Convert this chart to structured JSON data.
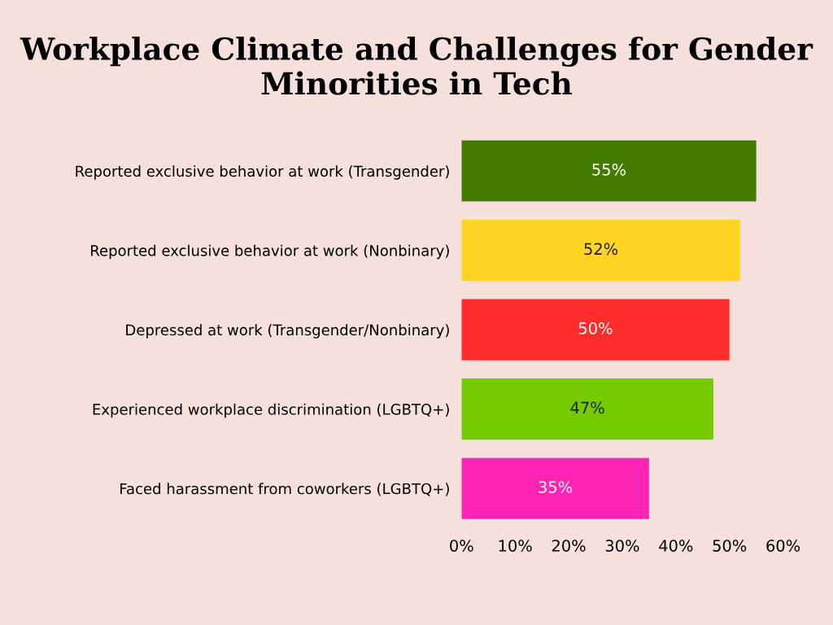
{
  "chart_data": {
    "type": "bar",
    "orientation": "horizontal",
    "title": "Workplace Climate and Challenges for Gender Minorities in Tech",
    "categories": [
      "Reported exclusive behavior at work (Transgender)",
      "Reported exclusive behavior at work (Nonbinary)",
      "Depressed at work (Transgender/Nonbinary)",
      "Experienced workplace discrimination (LGBTQ+)",
      "Faced harassment from coworkers (LGBTQ+)"
    ],
    "values": [
      55,
      52,
      50,
      47,
      35
    ],
    "value_labels": [
      "55%",
      "52%",
      "50%",
      "47%",
      "35%"
    ],
    "colors": [
      "#437c00",
      "#ffd422",
      "#ff2c2c",
      "#74cc00",
      "#ff24b4"
    ],
    "xlim": [
      0,
      60
    ],
    "xticks": [
      {
        "value": 0,
        "label": "0%"
      },
      {
        "value": 10,
        "label": "10%"
      },
      {
        "value": 20,
        "label": "20%"
      },
      {
        "value": 30,
        "label": "30%"
      },
      {
        "value": 40,
        "label": "40%"
      },
      {
        "value": 50,
        "label": "50%"
      },
      {
        "value": 60,
        "label": "60%"
      }
    ],
    "grid": false,
    "legend": false
  }
}
